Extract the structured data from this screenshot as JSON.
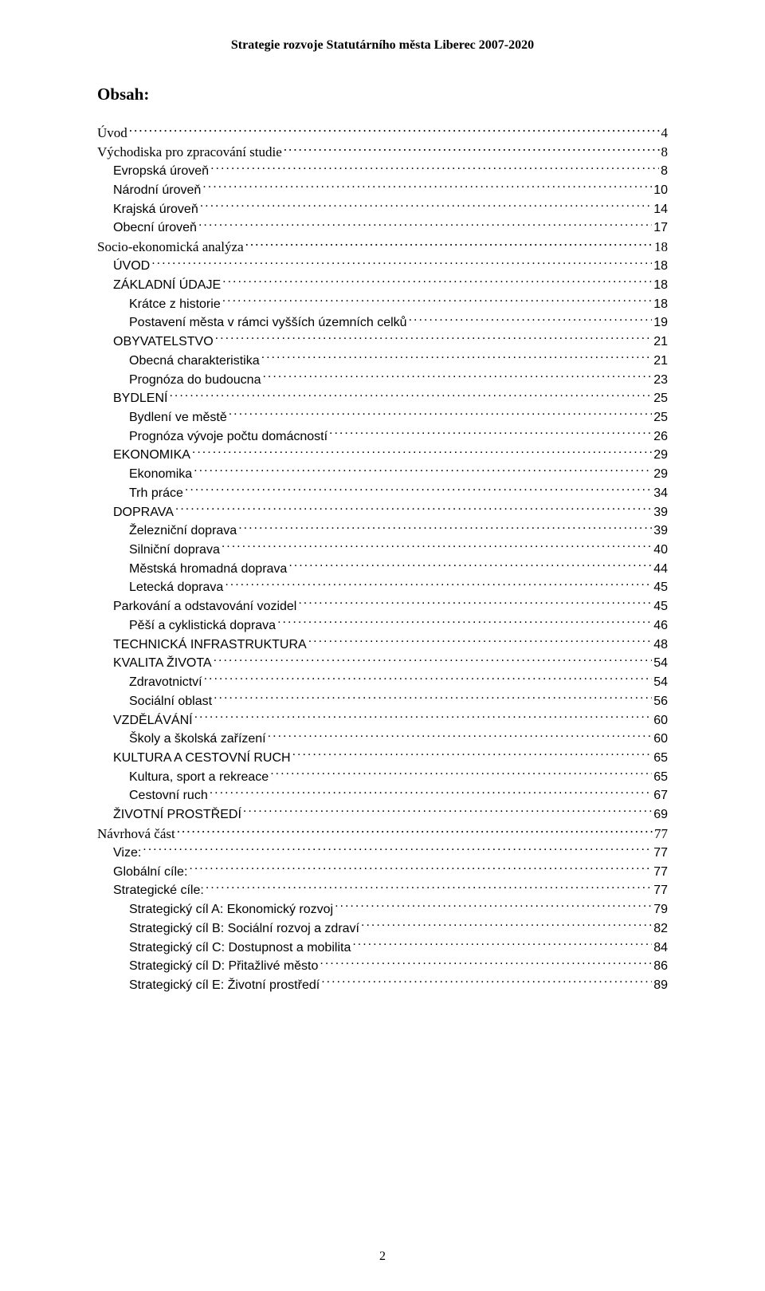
{
  "header": "Strategie rozvoje Statutárního města Liberec 2007-2020",
  "obsah_title": "Obsah:",
  "page_number": "2",
  "toc": [
    {
      "label": "Úvod",
      "page": "4",
      "indent": 0,
      "font": "serif"
    },
    {
      "label": "Východiska pro zpracování studie",
      "page": "8",
      "indent": 0,
      "font": "serif"
    },
    {
      "label": "Evropská úroveň",
      "page": "8",
      "indent": 1,
      "font": "sans"
    },
    {
      "label": "Národní úroveň",
      "page": "10",
      "indent": 1,
      "font": "sans"
    },
    {
      "label": "Krajská úroveň",
      "page": "14",
      "indent": 1,
      "font": "sans"
    },
    {
      "label": "Obecní úroveň",
      "page": "17",
      "indent": 1,
      "font": "sans"
    },
    {
      "label": "Socio-ekonomická analýza",
      "page": "18",
      "indent": 0,
      "font": "serif"
    },
    {
      "label": "ÚVOD",
      "page": "18",
      "indent": 1,
      "font": "sans"
    },
    {
      "label": "ZÁKLADNÍ ÚDAJE",
      "page": "18",
      "indent": 1,
      "font": "sans"
    },
    {
      "label": "Krátce z historie",
      "page": "18",
      "indent": 2,
      "font": "sans"
    },
    {
      "label": "Postavení města v rámci vyšších územních celků",
      "page": "19",
      "indent": 2,
      "font": "sans"
    },
    {
      "label": "OBYVATELSTVO",
      "page": "21",
      "indent": 1,
      "font": "sans"
    },
    {
      "label": "Obecná charakteristika",
      "page": "21",
      "indent": 2,
      "font": "sans"
    },
    {
      "label": "Prognóza do budoucna",
      "page": "23",
      "indent": 2,
      "font": "sans"
    },
    {
      "label": "BYDLENÍ",
      "page": "25",
      "indent": 1,
      "font": "sans"
    },
    {
      "label": "Bydlení ve městě",
      "page": "25",
      "indent": 2,
      "font": "sans"
    },
    {
      "label": "Prognóza vývoje počtu domácností",
      "page": "26",
      "indent": 2,
      "font": "sans"
    },
    {
      "label": "EKONOMIKA",
      "page": "29",
      "indent": 1,
      "font": "sans"
    },
    {
      "label": "Ekonomika",
      "page": "29",
      "indent": 2,
      "font": "sans"
    },
    {
      "label": "Trh práce",
      "page": "34",
      "indent": 2,
      "font": "sans"
    },
    {
      "label": "DOPRAVA",
      "page": "39",
      "indent": 1,
      "font": "sans"
    },
    {
      "label": "Železniční doprava",
      "page": "39",
      "indent": 2,
      "font": "sans"
    },
    {
      "label": "Silniční doprava",
      "page": "40",
      "indent": 2,
      "font": "sans"
    },
    {
      "label": "Městská hromadná doprava",
      "page": "44",
      "indent": 2,
      "font": "sans"
    },
    {
      "label": "Letecká doprava",
      "page": "45",
      "indent": 2,
      "font": "sans"
    },
    {
      "label": "Parkování a odstavování vozidel",
      "page": "45",
      "indent": 1,
      "font": "sans"
    },
    {
      "label": "Pěší a cyklistická doprava",
      "page": "46",
      "indent": 2,
      "font": "sans"
    },
    {
      "label": "TECHNICKÁ INFRASTRUKTURA",
      "page": "48",
      "indent": 1,
      "font": "sans"
    },
    {
      "label": "KVALITA ŽIVOTA",
      "page": "54",
      "indent": 1,
      "font": "sans"
    },
    {
      "label": "Zdravotnictví",
      "page": "54",
      "indent": 2,
      "font": "sans"
    },
    {
      "label": "Sociální oblast",
      "page": "56",
      "indent": 2,
      "font": "sans"
    },
    {
      "label": "VZDĚLÁVÁNÍ",
      "page": "60",
      "indent": 1,
      "font": "sans"
    },
    {
      "label": "Školy a školská zařízení",
      "page": "60",
      "indent": 2,
      "font": "sans"
    },
    {
      "label": "KULTURA A CESTOVNÍ RUCH",
      "page": "65",
      "indent": 1,
      "font": "sans"
    },
    {
      "label": "Kultura, sport a rekreace",
      "page": "65",
      "indent": 2,
      "font": "sans"
    },
    {
      "label": "Cestovní ruch",
      "page": "67",
      "indent": 2,
      "font": "sans"
    },
    {
      "label": "ŽIVOTNÍ PROSTŘEDÍ",
      "page": "69",
      "indent": 1,
      "font": "sans"
    },
    {
      "label": "Návrhová část",
      "page": "77",
      "indent": 0,
      "font": "serif"
    },
    {
      "label": "Vize:",
      "page": "77",
      "indent": 1,
      "font": "sans"
    },
    {
      "label": "Globální cíle:",
      "page": "77",
      "indent": 1,
      "font": "sans"
    },
    {
      "label": "Strategické cíle:",
      "page": "77",
      "indent": 1,
      "font": "sans"
    },
    {
      "label": "Strategický cíl A: Ekonomický rozvoj",
      "page": "79",
      "indent": 2,
      "font": "sans"
    },
    {
      "label": "Strategický cíl B: Sociální rozvoj a zdraví",
      "page": "82",
      "indent": 2,
      "font": "sans"
    },
    {
      "label": "Strategický cíl C: Dostupnost a mobilita",
      "page": "84",
      "indent": 2,
      "font": "sans"
    },
    {
      "label": "Strategický cíl D: Přitažlivé město",
      "page": "86",
      "indent": 2,
      "font": "sans"
    },
    {
      "label": "Strategický cíl E: Životní prostředí",
      "page": "89",
      "indent": 2,
      "font": "sans"
    }
  ]
}
